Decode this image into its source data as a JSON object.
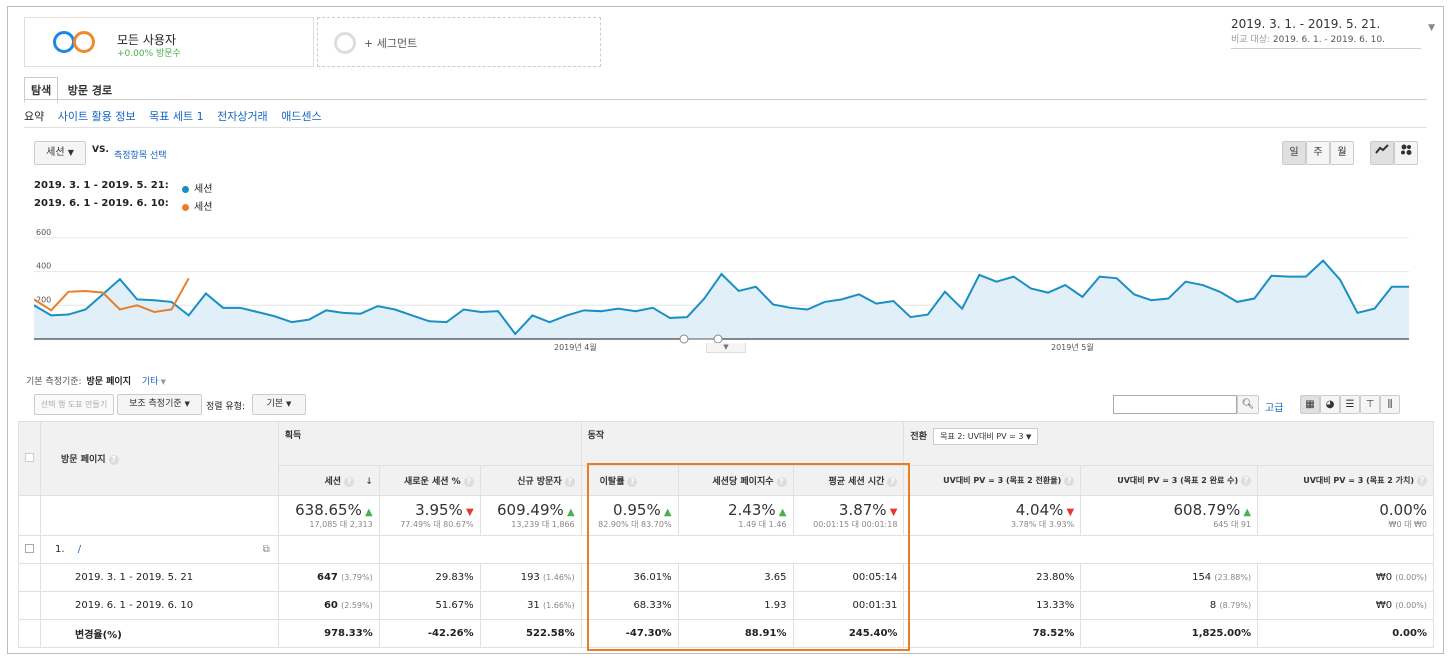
{
  "segments": {
    "segment1": {
      "name": "모든 사용자",
      "stat": "+0.00% 방문수"
    },
    "add_segment": "+ 세그먼트"
  },
  "date_range": {
    "primary": "2019. 3. 1. - 2019. 5. 21.",
    "compare_label": "비교 대상:",
    "compare": "2019. 6. 1. - 2019. 6. 10."
  },
  "tabs": [
    "탐색",
    "방문 경로"
  ],
  "subnav": [
    "요약",
    "사이트 활용 정보",
    "목표 세트 1",
    "전자상거래",
    "애드센스"
  ],
  "chart_controls": {
    "metric": "세션",
    "vs": "VS.",
    "select_metric": "측정항목 선택",
    "granularity": [
      "일",
      "주",
      "월"
    ]
  },
  "legend": [
    {
      "range": "2019. 3. 1 - 2019. 5. 21:",
      "series": "세션",
      "color": "#1a8fc4"
    },
    {
      "range": "2019. 6. 1 - 2019. 6. 10:",
      "series": "세션",
      "color": "#e87e2b"
    }
  ],
  "chart_data": {
    "type": "line",
    "yticks": [
      "600",
      "400",
      "200"
    ],
    "ylim": [
      0,
      700
    ],
    "xticks": [
      "2019년 4월",
      "2019년 5월"
    ],
    "series": [
      {
        "name": "세션",
        "color": "#1a8fc4",
        "values": [
          200,
          140,
          145,
          175,
          265,
          355,
          235,
          230,
          220,
          140,
          270,
          185,
          185,
          160,
          135,
          100,
          115,
          170,
          155,
          150,
          195,
          175,
          140,
          105,
          100,
          175,
          160,
          165,
          30,
          140,
          100,
          140,
          170,
          165,
          180,
          165,
          185,
          125,
          130,
          240,
          385,
          285,
          310,
          205,
          185,
          175,
          220,
          235,
          265,
          210,
          225,
          130,
          145,
          280,
          180,
          380,
          340,
          370,
          300,
          275,
          320,
          250,
          370,
          360,
          265,
          230,
          240,
          340,
          320,
          280,
          220,
          240,
          375,
          370,
          370,
          465,
          350,
          155,
          180,
          310,
          310
        ]
      },
      {
        "name": "세션",
        "color": "#e87e2b",
        "values": [
          235,
          170,
          280,
          285,
          275,
          175,
          200,
          160,
          175,
          360
        ]
      }
    ]
  },
  "dimension": {
    "label": "기본 측정기준:",
    "value": "방문 페이지",
    "other": "기타"
  },
  "toolbar": {
    "plot_rows": "선택 행 도표 만들기",
    "secondary": "보조 측정기준",
    "sort_label": "정렬 유형:",
    "sort_value": "기본",
    "advanced": "고급"
  },
  "table": {
    "dim_header": "방문 페이지",
    "groups": {
      "acq": "획득",
      "beh": "동작",
      "conv": "전환",
      "goal_select": "목표 2: UV대비 PV = 3"
    },
    "columns": [
      "세션",
      "새로운 세션 %",
      "신규 방문자",
      "이탈률",
      "세션당 페이지수",
      "평균 세션 시간",
      "UV대비 PV = 3 (목표 2 전환율)",
      "UV대비 PV = 3 (목표 2 완료 수)",
      "UV대비 PV = 3 (목표 2 가치)"
    ],
    "totals": [
      {
        "pct": "638.65%",
        "dir": "up",
        "sub": "17,085 대 2,313"
      },
      {
        "pct": "3.95%",
        "dir": "down",
        "sub": "77.49% 대 80.67%"
      },
      {
        "pct": "609.49%",
        "dir": "up",
        "sub": "13,239 대 1,866"
      },
      {
        "pct": "0.95%",
        "dir": "up",
        "sub": "82.90% 대 83.70%"
      },
      {
        "pct": "2.43%",
        "dir": "up",
        "sub": "1.49 대 1.46"
      },
      {
        "pct": "3.87%",
        "dir": "down",
        "sub": "00:01:15 대 00:01:18"
      },
      {
        "pct": "4.04%",
        "dir": "down",
        "sub": "3.78% 대 3.93%"
      },
      {
        "pct": "608.79%",
        "dir": "up",
        "sub": "645 대 91"
      },
      {
        "pct": "0.00%",
        "dir": "",
        "sub": "₩0 대 ₩0"
      }
    ],
    "row1_label": "1.",
    "row1_page": "/",
    "rows": [
      {
        "label": "2019. 3. 1 - 2019. 5. 21",
        "cells": [
          [
            "647",
            "(3.79%)"
          ],
          [
            "29.83%",
            ""
          ],
          [
            "193",
            "(1.46%)"
          ],
          [
            "36.01%",
            ""
          ],
          [
            "3.65",
            ""
          ],
          [
            "00:05:14",
            ""
          ],
          [
            "23.80%",
            ""
          ],
          [
            "154",
            "(23.88%)"
          ],
          [
            "₩0",
            "(0.00%)"
          ]
        ]
      },
      {
        "label": "2019. 6. 1 - 2019. 6. 10",
        "cells": [
          [
            "60",
            "(2.59%)"
          ],
          [
            "51.67%",
            ""
          ],
          [
            "31",
            "(1.66%)"
          ],
          [
            "68.33%",
            ""
          ],
          [
            "1.93",
            ""
          ],
          [
            "00:01:31",
            ""
          ],
          [
            "13.33%",
            ""
          ],
          [
            "8",
            "(8.79%)"
          ],
          [
            "₩0",
            "(0.00%)"
          ]
        ]
      },
      {
        "label": "변경율(%)",
        "cells": [
          [
            "978.33%",
            ""
          ],
          [
            "-42.26%",
            ""
          ],
          [
            "522.58%",
            ""
          ],
          [
            "-47.30%",
            ""
          ],
          [
            "88.91%",
            ""
          ],
          [
            "245.40%",
            ""
          ],
          [
            "78.52%",
            ""
          ],
          [
            "1,825.00%",
            ""
          ],
          [
            "0.00%",
            ""
          ]
        ]
      }
    ]
  }
}
